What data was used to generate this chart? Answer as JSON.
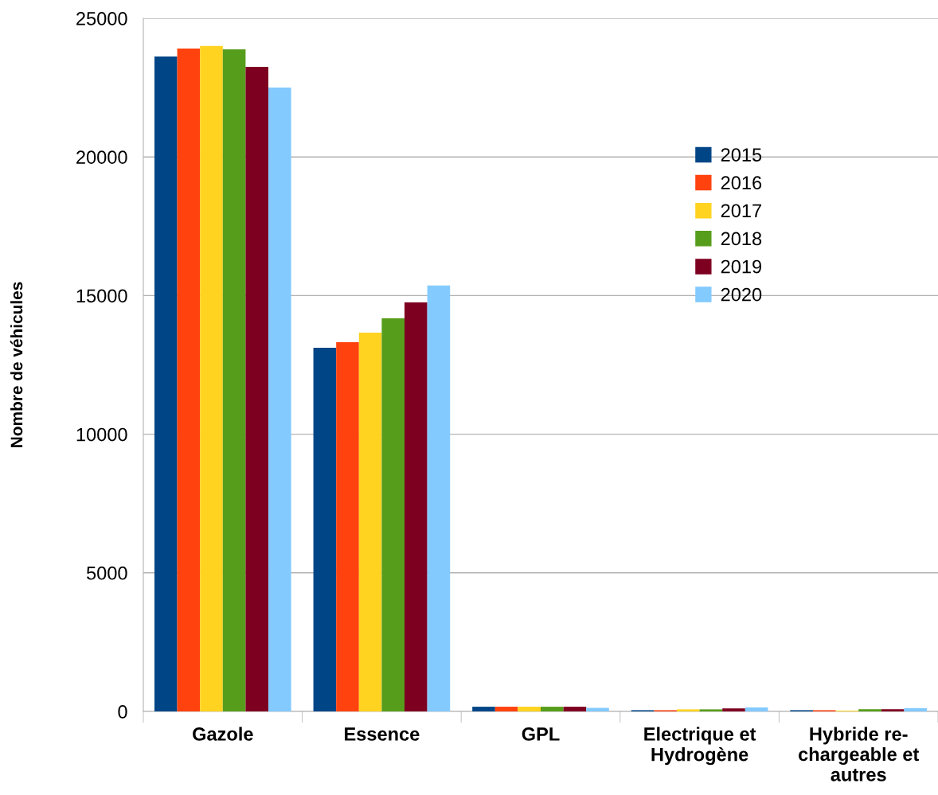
{
  "chart_data": {
    "type": "bar",
    "ylabel": "Nombre de véhicules",
    "categories": [
      "Gazole",
      "Essence",
      "GPL",
      "Electrique et\nHydrogène",
      "Hybride re-\nchargeable et\nautres"
    ],
    "series": [
      {
        "name": "2015",
        "color": "#004586",
        "values": [
          23620,
          13120,
          170,
          45,
          45
        ]
      },
      {
        "name": "2016",
        "color": "#ff420e",
        "values": [
          23910,
          13320,
          170,
          45,
          45
        ]
      },
      {
        "name": "2017",
        "color": "#ffd320",
        "values": [
          24000,
          13660,
          170,
          75,
          30
        ]
      },
      {
        "name": "2018",
        "color": "#579d1c",
        "values": [
          23880,
          14180,
          170,
          75,
          80
        ]
      },
      {
        "name": "2019",
        "color": "#7e0021",
        "values": [
          23250,
          14750,
          170,
          110,
          80
        ]
      },
      {
        "name": "2020",
        "color": "#83caff",
        "values": [
          22500,
          15360,
          130,
          145,
          120
        ]
      }
    ],
    "ylim": [
      0,
      25000
    ],
    "yticks": [
      0,
      5000,
      10000,
      15000,
      20000,
      25000
    ],
    "grid": "y",
    "legend": "right"
  }
}
